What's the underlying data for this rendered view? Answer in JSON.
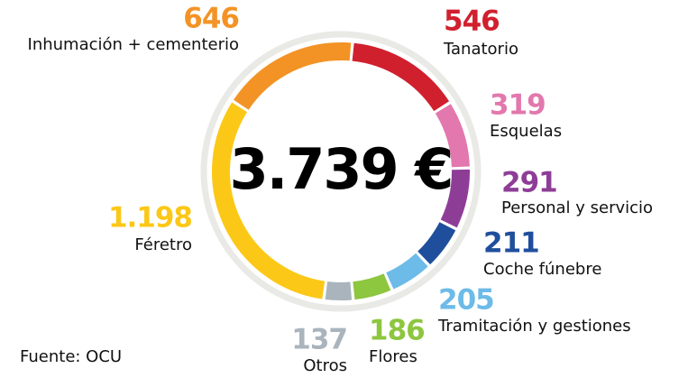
{
  "chart_data": {
    "type": "donut",
    "categories": [
      "Inhumación + cementerio",
      "Tanatorio",
      "Esquelas",
      "Personal y servicio",
      "Coche fúnebre",
      "Tramitación y gestiones",
      "Flores",
      "Otros",
      "Féretro"
    ],
    "values": [
      646,
      546,
      319,
      291,
      211,
      205,
      186,
      137,
      1198
    ],
    "value_labels": [
      "646",
      "546",
      "319",
      "291",
      "211",
      "205",
      "186",
      "137",
      "1.198"
    ],
    "colors": [
      "#f39325",
      "#d0202e",
      "#e278ad",
      "#8e3d97",
      "#1f4e9c",
      "#6cbbe8",
      "#8dc63f",
      "#a9b4bd",
      "#fcc817"
    ],
    "total": 3739,
    "total_label": "3.739 €",
    "source": "Fuente: OCU"
  }
}
